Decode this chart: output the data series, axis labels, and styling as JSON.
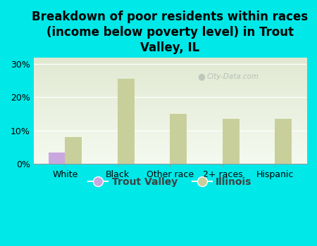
{
  "title": "Breakdown of poor residents within races\n(income below poverty level) in Trout\nValley, IL",
  "categories": [
    "White",
    "Black",
    "Other race",
    "2+ races",
    "Hispanic"
  ],
  "trout_valley_values": [
    3.5,
    0,
    0,
    0,
    0
  ],
  "illinois_values": [
    8.0,
    25.5,
    15.0,
    13.5,
    13.5
  ],
  "trout_valley_color": "#c9a8e0",
  "illinois_color": "#c8cf9a",
  "background_color": "#00e8e8",
  "plot_bg_top": "#e8edd8",
  "plot_bg_bottom": "#f0f5e8",
  "ylim": [
    0,
    32
  ],
  "yticks": [
    0,
    10,
    20,
    30
  ],
  "ytick_labels": [
    "0%",
    "10%",
    "20%",
    "30%"
  ],
  "bar_width": 0.32,
  "watermark": "City-Data.com",
  "legend_labels": [
    "Trout Valley",
    "Illinois"
  ],
  "title_fontsize": 12,
  "tick_fontsize": 9,
  "legend_fontsize": 10
}
